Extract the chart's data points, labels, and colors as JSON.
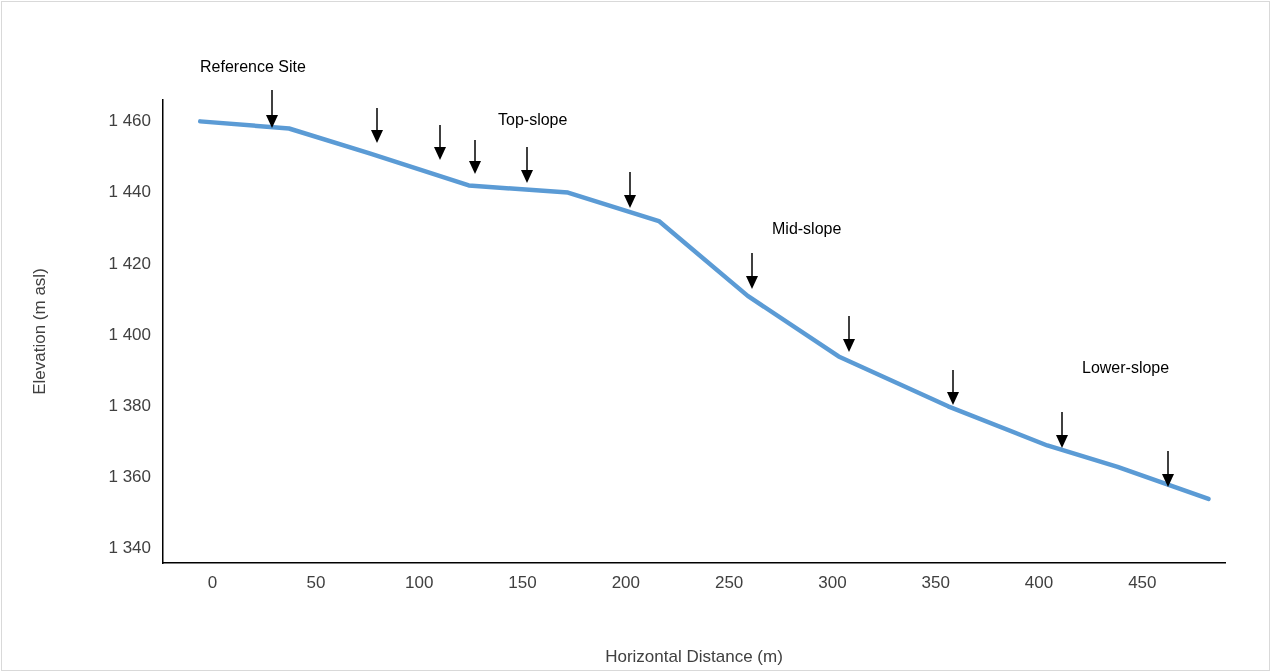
{
  "chart_data": {
    "type": "line",
    "xlabel": "Horizontal Distance (m)",
    "ylabel": "Elevation (m asl)",
    "annotations": [
      "Reference Site",
      "Top-slope",
      "Mid-slope",
      "Lower-slope"
    ],
    "x": [
      -6,
      37,
      76,
      124,
      172,
      216,
      259,
      303,
      356,
      404,
      438,
      482
    ],
    "series": [
      {
        "color": "#5b9bd5",
        "values": [
          1460,
          1458,
          1451,
          1442,
          1440,
          1432,
          1411,
          1394,
          1380,
          1369,
          1363,
          1354
        ]
      }
    ],
    "xlim": [
      -24,
      490
    ],
    "xticks": [
      0,
      50,
      100,
      150,
      200,
      250,
      300,
      350,
      400,
      450
    ],
    "ylim": [
      1336,
      1466
    ],
    "yticks": [
      {
        "value": 1340,
        "label": "1 340"
      },
      {
        "value": 1360,
        "label": "1 360"
      },
      {
        "value": 1380,
        "label": "1 380"
      },
      {
        "value": 1400,
        "label": "1 400"
      },
      {
        "value": 1420,
        "label": "1 420"
      },
      {
        "value": 1440,
        "label": "1 440"
      },
      {
        "value": 1460,
        "label": "1 460"
      }
    ],
    "grid": false,
    "legend": false,
    "marker": "none",
    "line_style": "solid"
  }
}
